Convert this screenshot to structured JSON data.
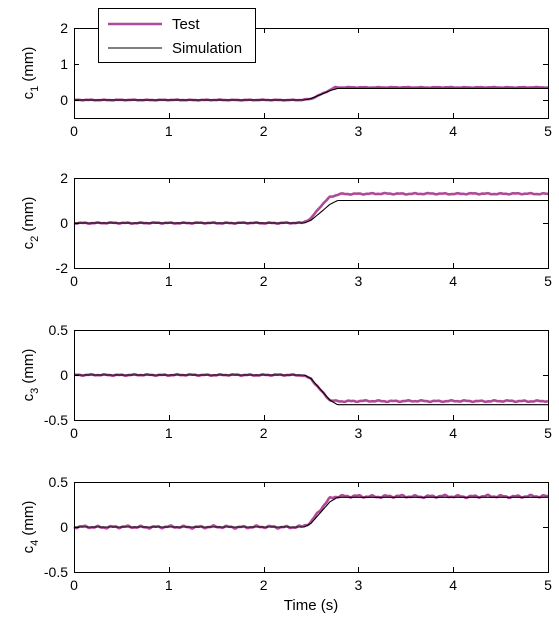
{
  "colors": {
    "test": "#b04a98",
    "simulation": "#000000",
    "axes": "#000000",
    "background": "#ffffff"
  },
  "chart_data": [
    {
      "type": "line",
      "ylabel_base": "c",
      "ylabel_sub": "1",
      "ylabel_unit": " (mm)",
      "xlim": [
        0,
        5
      ],
      "ylim": [
        -0.5,
        2
      ],
      "xticks": [
        0,
        1,
        2,
        3,
        4,
        5
      ],
      "yticks": [
        0,
        1,
        2
      ],
      "legend": {
        "position": "top-left",
        "entries": [
          "Test",
          "Simulation"
        ]
      },
      "series": [
        {
          "name": "Test",
          "x": [
            0,
            2.4,
            2.5,
            2.6,
            2.7,
            2.75,
            3.0,
            3.5,
            4.0,
            4.5,
            5.0
          ],
          "y": [
            0,
            0,
            0.03,
            0.15,
            0.28,
            0.35,
            0.35,
            0.35,
            0.35,
            0.35,
            0.35
          ],
          "noise": 0.012
        },
        {
          "name": "Simulation",
          "x": [
            0,
            2.43,
            2.5,
            2.6,
            2.7,
            2.78,
            5.0
          ],
          "y": [
            0,
            0,
            0.04,
            0.15,
            0.26,
            0.32,
            0.32
          ],
          "noise": 0
        }
      ]
    },
    {
      "type": "line",
      "ylabel_base": "c",
      "ylabel_sub": "2",
      "ylabel_unit": " (mm)",
      "xlim": [
        0,
        5
      ],
      "ylim": [
        -2,
        2
      ],
      "xticks": [
        0,
        1,
        2,
        3,
        4,
        5
      ],
      "yticks": [
        -2,
        0,
        2
      ],
      "series": [
        {
          "name": "Test",
          "x": [
            0,
            2.4,
            2.5,
            2.6,
            2.7,
            2.8,
            3.0,
            3.5,
            4.0,
            4.5,
            5.0
          ],
          "y": [
            0,
            0,
            0.2,
            0.75,
            1.15,
            1.28,
            1.3,
            1.3,
            1.3,
            1.3,
            1.3
          ],
          "noise": 0.035
        },
        {
          "name": "Simulation",
          "x": [
            0,
            2.43,
            2.5,
            2.6,
            2.7,
            2.78,
            5.0
          ],
          "y": [
            0,
            0,
            0.12,
            0.47,
            0.83,
            1.0,
            1.0
          ],
          "noise": 0
        }
      ]
    },
    {
      "type": "line",
      "ylabel_base": "c",
      "ylabel_sub": "3",
      "ylabel_unit": " (mm)",
      "xlim": [
        0,
        5
      ],
      "ylim": [
        -0.5,
        0.5
      ],
      "xticks": [
        0,
        1,
        2,
        3,
        4,
        5
      ],
      "yticks": [
        -0.5,
        0,
        0.5
      ],
      "series": [
        {
          "name": "Test",
          "x": [
            0,
            2.4,
            2.5,
            2.6,
            2.7,
            2.75,
            3.0,
            3.5,
            4.0,
            4.5,
            5.0
          ],
          "y": [
            0,
            0,
            -0.04,
            -0.17,
            -0.28,
            -0.29,
            -0.29,
            -0.29,
            -0.29,
            -0.29,
            -0.29
          ],
          "noise": 0.01
        },
        {
          "name": "Simulation",
          "x": [
            0,
            2.43,
            2.5,
            2.6,
            2.7,
            2.78,
            5.0
          ],
          "y": [
            0,
            0,
            -0.04,
            -0.16,
            -0.28,
            -0.33,
            -0.33
          ],
          "noise": 0
        }
      ]
    },
    {
      "type": "line",
      "ylabel_base": "c",
      "ylabel_sub": "4",
      "ylabel_unit": " (mm)",
      "xlim": [
        0,
        5
      ],
      "ylim": [
        -0.5,
        0.5
      ],
      "xticks": [
        0,
        1,
        2,
        3,
        4,
        5
      ],
      "yticks": [
        -0.5,
        0,
        0.5
      ],
      "xlabel": "Time (s)",
      "series": [
        {
          "name": "Test",
          "x": [
            0,
            2.4,
            2.5,
            2.6,
            2.7,
            2.75,
            3.0,
            3.5,
            4.0,
            4.5,
            5.0
          ],
          "y": [
            0,
            0,
            0.05,
            0.2,
            0.32,
            0.34,
            0.34,
            0.34,
            0.34,
            0.34,
            0.34
          ],
          "noise": 0.018
        },
        {
          "name": "Simulation",
          "x": [
            0,
            2.43,
            2.5,
            2.6,
            2.7,
            2.78,
            5.0
          ],
          "y": [
            0,
            0,
            0.04,
            0.16,
            0.28,
            0.33,
            0.33
          ],
          "noise": 0
        }
      ]
    }
  ]
}
